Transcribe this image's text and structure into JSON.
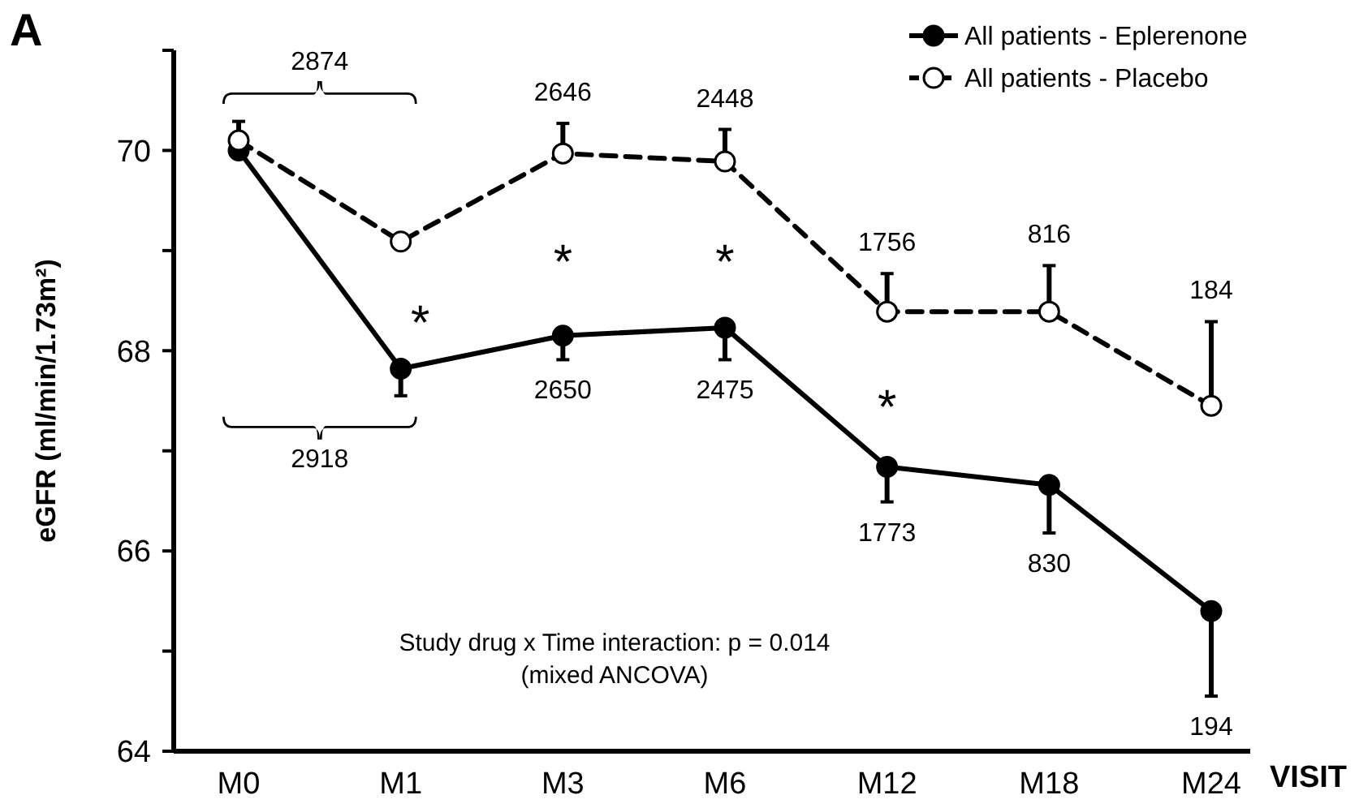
{
  "chart_data": {
    "type": "line",
    "xlabel": "VISIT",
    "ylabel": "eGFR (ml/min/1.73m²)",
    "categories": [
      "M0",
      "M1",
      "M3",
      "M6",
      "M12",
      "M18",
      "M24"
    ],
    "ylim": [
      64,
      71
    ],
    "yticks": [
      64,
      {
        "value": 65,
        "label": null
      },
      66,
      {
        "value": 67,
        "label": null
      },
      68,
      {
        "value": 69,
        "label": null
      },
      70,
      {
        "value": 71,
        "label": null
      }
    ],
    "series": [
      {
        "name": "All patients - Eplerenone",
        "color": "#000000",
        "line_style": "solid",
        "values": [
          70.0,
          67.82,
          68.15,
          68.23,
          66.84,
          66.66,
          65.4
        ],
        "errors": [
          null,
          [
            67.55,
            67.82
          ],
          [
            67.91,
            68.15
          ],
          [
            67.91,
            68.23
          ],
          [
            66.49,
            66.84
          ],
          [
            66.18,
            66.66
          ],
          [
            64.55,
            65.4
          ]
        ]
      },
      {
        "name": "All patients - Placebo",
        "color": "#000000",
        "line_style": "dashed",
        "values": [
          70.1,
          69.09,
          69.97,
          69.89,
          68.39,
          68.39,
          67.45
        ],
        "errors": [
          [
            70.1,
            70.29
          ],
          null,
          [
            69.97,
            70.27
          ],
          [
            69.89,
            70.21
          ],
          [
            68.39,
            68.77
          ],
          [
            68.39,
            68.85
          ],
          [
            67.45,
            68.29
          ]
        ]
      }
    ],
    "marker": "circle",
    "legend": "top right",
    "grid": false,
    "annotations": [
      "A",
      "Study drug x Time interaction: p = 0.014",
      "(mixed ANCOVA)",
      "2874",
      "2918",
      "2646",
      "2448",
      "1756",
      "816",
      "184",
      "2650",
      "2475",
      "1773",
      "830",
      "194",
      "*",
      "*",
      "*",
      "*"
    ]
  }
}
